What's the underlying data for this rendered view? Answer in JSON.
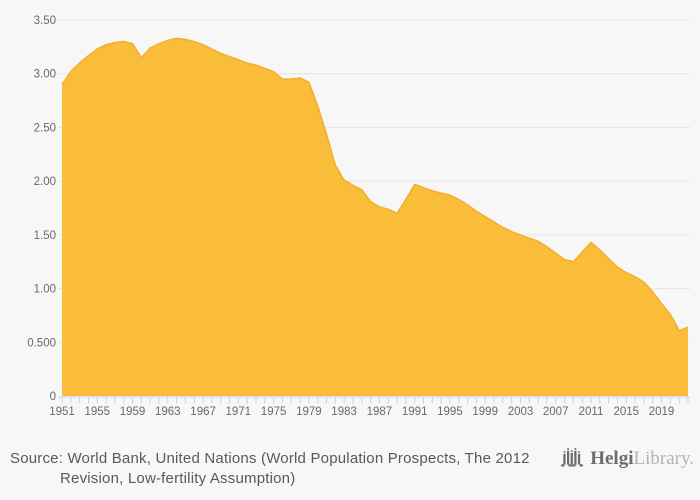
{
  "page": {
    "background": "#f7f7f7"
  },
  "chart_data": {
    "type": "area",
    "title": "",
    "xlabel": "",
    "ylabel": "",
    "grid": true,
    "legend": false,
    "ylim": [
      0,
      3.5
    ],
    "x": [
      1951,
      1952,
      1953,
      1954,
      1955,
      1956,
      1957,
      1958,
      1959,
      1960,
      1961,
      1962,
      1963,
      1964,
      1965,
      1966,
      1967,
      1968,
      1969,
      1970,
      1971,
      1972,
      1973,
      1974,
      1975,
      1976,
      1977,
      1978,
      1979,
      1980,
      1981,
      1982,
      1983,
      1984,
      1985,
      1986,
      1987,
      1988,
      1989,
      1990,
      1991,
      1992,
      1993,
      1994,
      1995,
      1996,
      1997,
      1998,
      1999,
      2000,
      2001,
      2002,
      2003,
      2004,
      2005,
      2006,
      2007,
      2008,
      2009,
      2010,
      2011,
      2012,
      2013,
      2014,
      2015,
      2016,
      2017,
      2018,
      2019,
      2020,
      2021,
      2022
    ],
    "values": [
      2.9,
      3.02,
      3.1,
      3.17,
      3.23,
      3.27,
      3.29,
      3.3,
      3.28,
      3.15,
      3.24,
      3.28,
      3.31,
      3.33,
      3.32,
      3.3,
      3.27,
      3.23,
      3.19,
      3.16,
      3.13,
      3.1,
      3.08,
      3.05,
      3.02,
      2.95,
      2.95,
      2.96,
      2.92,
      2.7,
      2.44,
      2.15,
      2.01,
      1.96,
      1.92,
      1.81,
      1.76,
      1.74,
      1.7,
      1.83,
      1.97,
      1.94,
      1.91,
      1.89,
      1.87,
      1.83,
      1.78,
      1.72,
      1.67,
      1.62,
      1.57,
      1.53,
      1.5,
      1.47,
      1.44,
      1.39,
      1.33,
      1.27,
      1.25,
      1.34,
      1.43,
      1.36,
      1.28,
      1.2,
      1.15,
      1.11,
      1.06,
      0.97,
      0.86,
      0.76,
      0.61,
      0.64
    ],
    "yticks": [
      {
        "v": 3.5,
        "label": "3.50"
      },
      {
        "v": 3.0,
        "label": "3.00"
      },
      {
        "v": 2.5,
        "label": "2.50"
      },
      {
        "v": 2.0,
        "label": "2.00"
      },
      {
        "v": 1.5,
        "label": "1.50"
      },
      {
        "v": 1.0,
        "label": "1.00"
      },
      {
        "v": 0.5,
        "label": "0.500"
      },
      {
        "v": 0,
        "label": "0"
      }
    ],
    "xticks": [
      "1951",
      "1955",
      "1959",
      "1963",
      "1967",
      "1971",
      "1975",
      "1979",
      "1983",
      "1987",
      "1991",
      "1995",
      "1999",
      "2003",
      "2007",
      "2011",
      "2015",
      "2019"
    ],
    "minor_xtick_every_years": 1,
    "colors": {
      "area": "#f9bd3a",
      "area_edge": "#f3ad2b",
      "grid": "#e4e4e4",
      "axis": "#c7d0e8",
      "tick_text": "#68696d"
    }
  },
  "footer": {
    "source_line1": "Source: World Bank, United Nations (World Population Prospects, The 2012",
    "source_line2": "Revision, Low-fertility Assumption)",
    "logo": {
      "brand_primary": "Helgi",
      "brand_secondary": "Library."
    }
  }
}
